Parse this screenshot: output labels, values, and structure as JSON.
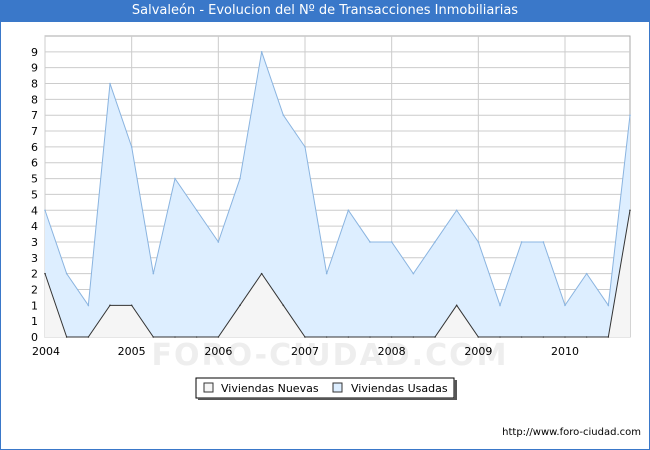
{
  "chart_data": {
    "type": "area",
    "title": "Salvaleón - Evolucion del Nº de Transacciones Inmobiliarias",
    "x_labels": [
      "2004",
      "2005",
      "2006",
      "2007",
      "2008",
      "2009",
      "2010"
    ],
    "y_tick_labels": [
      "0",
      "1",
      "1",
      "2",
      "2",
      "3",
      "3",
      "4",
      "4",
      "5",
      "5",
      "6",
      "6",
      "7",
      "7",
      "8",
      "8",
      "9",
      "9"
    ],
    "ylim": [
      0,
      9.5
    ],
    "grid": true,
    "legend_position": "bottom-center",
    "series": [
      {
        "name": "Viviendas Nuevas",
        "fill": "#f5f5f5",
        "stroke": "#333333",
        "x": [
          "2004 T1",
          "2004 T2",
          "2004 T3",
          "2004 T4",
          "2005 T1",
          "2005 T2",
          "2005 T3",
          "2005 T4",
          "2006 T1",
          "2006 T2",
          "2006 T3",
          "2006 T4",
          "2007 T1",
          "2007 T2",
          "2007 T3",
          "2007 T4",
          "2008 T1",
          "2008 T2",
          "2008 T3",
          "2008 T4",
          "2009 T1",
          "2009 T2",
          "2009 T3",
          "2009 T4",
          "2010 T1",
          "2010 T2",
          "2010 T3",
          "2010 T4"
        ],
        "values": [
          2,
          0,
          0,
          1,
          1,
          0,
          0,
          0,
          0,
          1,
          2,
          1,
          0,
          0,
          0,
          0,
          0,
          0,
          0,
          1,
          0,
          0,
          0,
          0,
          0,
          0,
          0,
          4
        ]
      },
      {
        "name": "Viviendas Usadas",
        "fill": "#ddeeff",
        "stroke": "#8ab4e0",
        "x": [
          "2004 T1",
          "2004 T2",
          "2004 T3",
          "2004 T4",
          "2005 T1",
          "2005 T2",
          "2005 T3",
          "2005 T4",
          "2006 T1",
          "2006 T2",
          "2006 T3",
          "2006 T4",
          "2007 T1",
          "2007 T2",
          "2007 T3",
          "2007 T4",
          "2008 T1",
          "2008 T2",
          "2008 T3",
          "2008 T4",
          "2009 T1",
          "2009 T2",
          "2009 T3",
          "2009 T4",
          "2010 T1",
          "2010 T2",
          "2010 T3",
          "2010 T4"
        ],
        "values": [
          4,
          2,
          1,
          8,
          6,
          2,
          5,
          4,
          3,
          5,
          9,
          7,
          6,
          2,
          4,
          3,
          3,
          2,
          3,
          4,
          3,
          1,
          3,
          3,
          1,
          2,
          1,
          7
        ]
      }
    ]
  },
  "watermark": "FORO-CIUDAD.COM",
  "footer_url": "http://www.foro-ciudad.com",
  "colors": {
    "title_bar": "#3a78c9",
    "plot_background": "#ffffff",
    "grid": "#cccccc"
  }
}
